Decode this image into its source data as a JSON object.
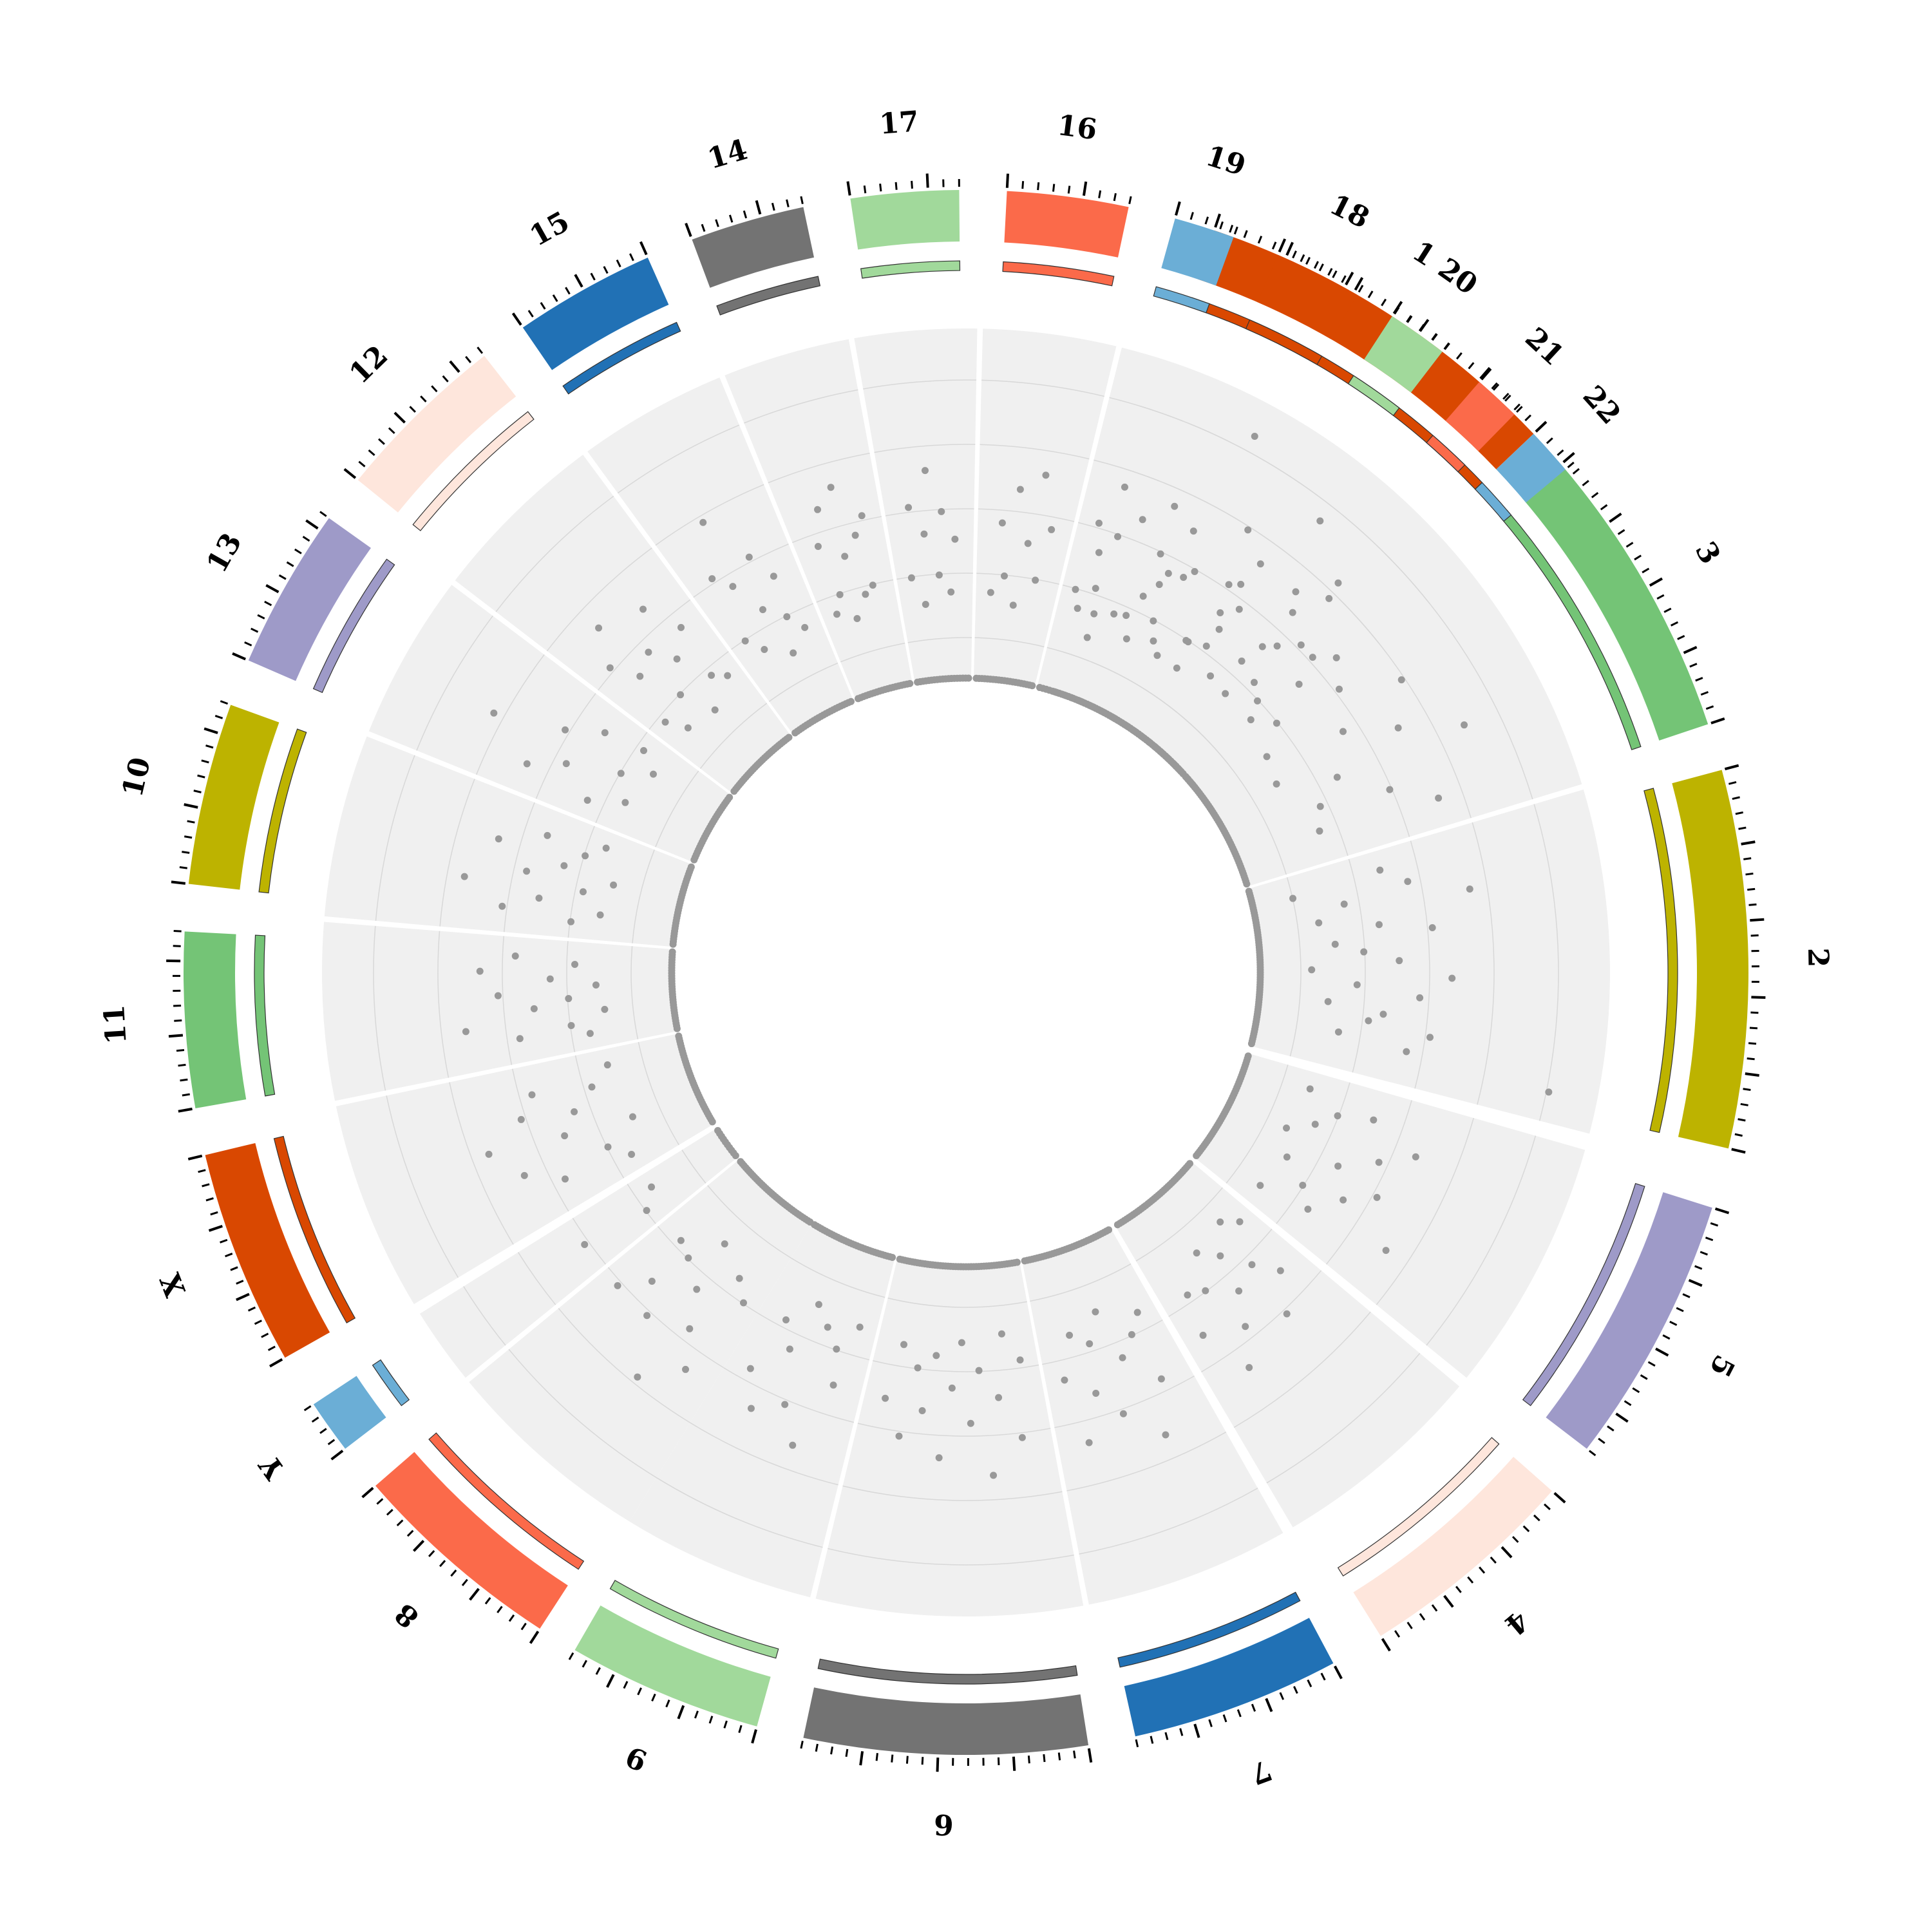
{
  "chart_data": {
    "type": "scatter",
    "subtype": "circos",
    "title": "",
    "grid": true,
    "track_background": "#f0f0f0",
    "point_color": "#999999",
    "segments": [
      {
        "label": "1",
        "color": "#d94801",
        "points": [
          [
            0.05,
            0.18
          ],
          [
            0.1,
            0.55
          ],
          [
            0.14,
            0.27
          ],
          [
            0.2,
            0.62
          ],
          [
            0.24,
            0.35
          ],
          [
            0.3,
            0.44
          ],
          [
            0.35,
            0.9
          ],
          [
            0.4,
            0.48
          ],
          [
            0.45,
            0.22
          ],
          [
            0.5,
            0.66
          ],
          [
            0.55,
            0.3
          ],
          [
            0.6,
            0.52
          ],
          [
            0.64,
            0.38
          ],
          [
            0.7,
            0.8
          ],
          [
            0.75,
            0.26
          ],
          [
            0.8,
            0.6
          ],
          [
            0.85,
            0.42
          ],
          [
            0.9,
            0.7
          ],
          [
            0.94,
            0.33
          ],
          [
            0.97,
            0.5
          ]
        ]
      },
      {
        "label": "3",
        "color": "#74c476",
        "points": [
          [
            0.08,
            0.3
          ],
          [
            0.15,
            0.5
          ],
          [
            0.22,
            0.22
          ],
          [
            0.3,
            0.66
          ],
          [
            0.36,
            0.44
          ],
          [
            0.42,
            0.2
          ],
          [
            0.5,
            0.58
          ],
          [
            0.58,
            0.36
          ],
          [
            0.64,
            0.75
          ],
          [
            0.7,
            0.28
          ],
          [
            0.78,
            0.48
          ],
          [
            0.85,
            0.25
          ],
          [
            0.92,
            0.6
          ]
        ]
      },
      {
        "label": "2",
        "color": "#bdb300",
        "points": [
          [
            0.04,
            0.38
          ],
          [
            0.08,
            0.12
          ],
          [
            0.12,
            0.45
          ],
          [
            0.17,
            0.26
          ],
          [
            0.2,
            0.62
          ],
          [
            0.25,
            0.18
          ],
          [
            0.3,
            0.35
          ],
          [
            0.34,
            0.5
          ],
          [
            0.38,
            0.22
          ],
          [
            0.43,
            0.3
          ],
          [
            0.48,
            0.4
          ],
          [
            0.52,
            0.15
          ],
          [
            0.56,
            0.55
          ],
          [
            0.6,
            0.28
          ],
          [
            0.65,
            0.46
          ],
          [
            0.7,
            0.2
          ],
          [
            0.74,
            0.36
          ],
          [
            0.78,
            0.32
          ],
          [
            0.82,
            0.5
          ],
          [
            0.86,
            0.24
          ],
          [
            0.9,
            0.44
          ],
          [
            0.95,
            0.86
          ]
        ]
      },
      {
        "label": "5",
        "color": "#9e9ac8",
        "points": [
          [
            0.06,
            0.2
          ],
          [
            0.12,
            0.4
          ],
          [
            0.18,
            0.3
          ],
          [
            0.24,
            0.55
          ],
          [
            0.3,
            0.25
          ],
          [
            0.36,
            0.46
          ],
          [
            0.42,
            0.18
          ],
          [
            0.5,
            0.36
          ],
          [
            0.56,
            0.5
          ],
          [
            0.62,
            0.22
          ],
          [
            0.68,
            0.42
          ],
          [
            0.74,
            0.3
          ],
          [
            0.8,
            0.6
          ],
          [
            0.86,
            0.35
          ],
          [
            0.92,
            0.2
          ]
        ]
      },
      {
        "label": "4",
        "color": "#fee6dc",
        "points": [
          [
            0.05,
            0.22
          ],
          [
            0.12,
            0.4
          ],
          [
            0.18,
            0.18
          ],
          [
            0.25,
            0.33
          ],
          [
            0.32,
            0.5
          ],
          [
            0.4,
            0.25
          ],
          [
            0.48,
            0.36
          ],
          [
            0.55,
            0.2
          ],
          [
            0.62,
            0.45
          ],
          [
            0.7,
            0.3
          ],
          [
            0.78,
            0.55
          ],
          [
            0.85,
            0.28
          ],
          [
            0.93,
            0.4
          ]
        ]
      },
      {
        "label": "7",
        "color": "#2171b5",
        "points": [
          [
            0.08,
            0.25
          ],
          [
            0.15,
            0.45
          ],
          [
            0.22,
            0.3
          ],
          [
            0.3,
            0.6
          ],
          [
            0.38,
            0.35
          ],
          [
            0.46,
            0.2
          ],
          [
            0.54,
            0.5
          ],
          [
            0.62,
            0.28
          ],
          [
            0.7,
            0.42
          ],
          [
            0.78,
            0.24
          ],
          [
            0.86,
            0.55
          ],
          [
            0.93,
            0.36
          ]
        ]
      },
      {
        "label": "6",
        "color": "#737373",
        "points": [
          [
            0.05,
            0.28
          ],
          [
            0.1,
            0.5
          ],
          [
            0.16,
            0.2
          ],
          [
            0.22,
            0.38
          ],
          [
            0.28,
            0.6
          ],
          [
            0.34,
            0.3
          ],
          [
            0.4,
            0.45
          ],
          [
            0.46,
            0.22
          ],
          [
            0.52,
            0.35
          ],
          [
            0.58,
            0.55
          ],
          [
            0.64,
            0.26
          ],
          [
            0.7,
            0.42
          ],
          [
            0.76,
            0.3
          ],
          [
            0.82,
            0.5
          ],
          [
            0.88,
            0.24
          ],
          [
            0.94,
            0.4
          ]
        ]
      },
      {
        "label": "9",
        "color": "#a1d99b",
        "points": [
          [
            0.08,
            0.22
          ],
          [
            0.16,
            0.4
          ],
          [
            0.24,
            0.3
          ],
          [
            0.32,
            0.6
          ],
          [
            0.4,
            0.25
          ],
          [
            0.5,
            0.5
          ],
          [
            0.58,
            0.2
          ],
          [
            0.66,
            0.35
          ],
          [
            0.74,
            0.55
          ],
          [
            0.82,
            0.28
          ],
          [
            0.9,
            0.45
          ]
        ]
      },
      {
        "label": "8",
        "color": "#fb6a4a",
        "points": [
          [
            0.06,
            0.3
          ],
          [
            0.14,
            0.55
          ],
          [
            0.22,
            0.25
          ],
          [
            0.3,
            0.45
          ],
          [
            0.38,
            0.65
          ],
          [
            0.46,
            0.35
          ],
          [
            0.54,
            0.2
          ],
          [
            0.62,
            0.5
          ],
          [
            0.7,
            0.3
          ],
          [
            0.78,
            0.42
          ],
          [
            0.86,
            0.28
          ],
          [
            0.94,
            0.5
          ]
        ]
      },
      {
        "label": "Y",
        "color": "#6baed6",
        "points": [
          [
            0.2,
            0.3
          ],
          [
            0.5,
            0.5
          ],
          [
            0.8,
            0.25
          ]
        ]
      },
      {
        "label": "X",
        "color": "#d94801",
        "points": [
          [
            0.06,
            0.25
          ],
          [
            0.14,
            0.45
          ],
          [
            0.22,
            0.3
          ],
          [
            0.3,
            0.55
          ],
          [
            0.38,
            0.2
          ],
          [
            0.46,
            0.4
          ],
          [
            0.54,
            0.62
          ],
          [
            0.62,
            0.35
          ],
          [
            0.7,
            0.5
          ],
          [
            0.78,
            0.28
          ],
          [
            0.86,
            0.45
          ],
          [
            0.94,
            0.22
          ]
        ]
      },
      {
        "label": "11",
        "color": "#74c476",
        "points": [
          [
            0.06,
            0.25
          ],
          [
            0.12,
            0.45
          ],
          [
            0.18,
            0.3
          ],
          [
            0.25,
            0.6
          ],
          [
            0.32,
            0.2
          ],
          [
            0.4,
            0.4
          ],
          [
            0.48,
            0.3
          ],
          [
            0.55,
            0.5
          ],
          [
            0.62,
            0.22
          ],
          [
            0.7,
            0.35
          ],
          [
            0.78,
            0.55
          ],
          [
            0.86,
            0.28
          ],
          [
            0.93,
            0.45
          ]
        ]
      },
      {
        "label": "10",
        "color": "#bdb300",
        "points": [
          [
            0.06,
            0.3
          ],
          [
            0.12,
            0.5
          ],
          [
            0.18,
            0.22
          ],
          [
            0.25,
            0.4
          ],
          [
            0.32,
            0.62
          ],
          [
            0.4,
            0.28
          ],
          [
            0.48,
            0.45
          ],
          [
            0.55,
            0.2
          ],
          [
            0.62,
            0.35
          ],
          [
            0.7,
            0.55
          ],
          [
            0.78,
            0.3
          ],
          [
            0.86,
            0.42
          ],
          [
            0.93,
            0.25
          ]
        ]
      },
      {
        "label": "13",
        "color": "#9e9ac8",
        "points": [
          [
            0.08,
            0.35
          ],
          [
            0.16,
            0.55
          ],
          [
            0.25,
            0.25
          ],
          [
            0.34,
            0.45
          ],
          [
            0.44,
            0.7
          ],
          [
            0.54,
            0.3
          ],
          [
            0.64,
            0.5
          ],
          [
            0.74,
            0.22
          ],
          [
            0.84,
            0.4
          ],
          [
            0.92,
            0.28
          ]
        ]
      },
      {
        "label": "12",
        "color": "#fee6dc",
        "points": [
          [
            0.06,
            0.28
          ],
          [
            0.12,
            0.5
          ],
          [
            0.18,
            0.22
          ],
          [
            0.25,
            0.42
          ],
          [
            0.32,
            0.6
          ],
          [
            0.4,
            0.3
          ],
          [
            0.48,
            0.45
          ],
          [
            0.56,
            0.2
          ],
          [
            0.64,
            0.38
          ],
          [
            0.72,
            0.55
          ],
          [
            0.8,
            0.28
          ],
          [
            0.88,
            0.44
          ],
          [
            0.94,
            0.25
          ]
        ]
      },
      {
        "label": "15",
        "color": "#2171b5",
        "points": [
          [
            0.08,
            0.3
          ],
          [
            0.16,
            0.5
          ],
          [
            0.24,
            0.25
          ],
          [
            0.32,
            0.45
          ],
          [
            0.4,
            0.65
          ],
          [
            0.5,
            0.35
          ],
          [
            0.58,
            0.2
          ],
          [
            0.66,
            0.5
          ],
          [
            0.74,
            0.3
          ],
          [
            0.82,
            0.42
          ],
          [
            0.9,
            0.25
          ]
        ]
      },
      {
        "label": "14",
        "color": "#737373",
        "points": [
          [
            0.08,
            0.25
          ],
          [
            0.16,
            0.45
          ],
          [
            0.24,
            0.3
          ],
          [
            0.32,
            0.55
          ],
          [
            0.4,
            0.22
          ],
          [
            0.5,
            0.4
          ],
          [
            0.58,
            0.6
          ],
          [
            0.66,
            0.28
          ],
          [
            0.74,
            0.45
          ],
          [
            0.82,
            0.3
          ],
          [
            0.9,
            0.5
          ]
        ]
      },
      {
        "label": "17",
        "color": "#a1d99b",
        "points": [
          [
            0.08,
            0.3
          ],
          [
            0.18,
            0.5
          ],
          [
            0.28,
            0.22
          ],
          [
            0.38,
            0.42
          ],
          [
            0.48,
            0.6
          ],
          [
            0.58,
            0.3
          ],
          [
            0.68,
            0.48
          ],
          [
            0.78,
            0.25
          ],
          [
            0.88,
            0.4
          ]
        ]
      },
      {
        "label": "16",
        "color": "#fb6a4a",
        "points": [
          [
            0.08,
            0.25
          ],
          [
            0.18,
            0.45
          ],
          [
            0.28,
            0.3
          ],
          [
            0.38,
            0.55
          ],
          [
            0.48,
            0.22
          ],
          [
            0.58,
            0.4
          ],
          [
            0.68,
            0.6
          ],
          [
            0.78,
            0.3
          ],
          [
            0.88,
            0.45
          ]
        ]
      },
      {
        "label": "19",
        "color": "#6baed6",
        "points": [
          [
            0.1,
            0.3
          ],
          [
            0.22,
            0.5
          ],
          [
            0.34,
            0.25
          ],
          [
            0.46,
            0.42
          ],
          [
            0.58,
            0.62
          ],
          [
            0.7,
            0.32
          ],
          [
            0.82,
            0.48
          ],
          [
            0.92,
            0.25
          ]
        ]
      },
      {
        "label": "18",
        "color": "#d94801",
        "points": [
          [
            0.1,
            0.28
          ],
          [
            0.22,
            0.48
          ],
          [
            0.34,
            0.22
          ],
          [
            0.46,
            0.4
          ],
          [
            0.58,
            0.58
          ],
          [
            0.7,
            0.3
          ],
          [
            0.82,
            0.45
          ],
          [
            0.92,
            0.25
          ]
        ]
      },
      {
        "label": "20",
        "color": "#a1d99b",
        "points": [
          [
            0.12,
            0.3
          ],
          [
            0.25,
            0.5
          ],
          [
            0.38,
            0.22
          ],
          [
            0.5,
            0.42
          ],
          [
            0.62,
            0.6
          ],
          [
            0.75,
            0.32
          ],
          [
            0.88,
            0.46
          ]
        ]
      },
      {
        "label": "21",
        "color": "#fb6a4a",
        "points": [
          [
            0.15,
            0.35
          ],
          [
            0.35,
            0.55
          ],
          [
            0.55,
            0.25
          ],
          [
            0.75,
            0.45
          ],
          [
            0.9,
            0.65
          ]
        ]
      },
      {
        "label": "22",
        "color": "#6baed6",
        "points": [
          [
            0.15,
            0.3
          ],
          [
            0.35,
            0.5
          ],
          [
            0.55,
            0.25
          ],
          [
            0.75,
            0.42
          ],
          [
            0.9,
            0.55
          ]
        ]
      }
    ]
  }
}
